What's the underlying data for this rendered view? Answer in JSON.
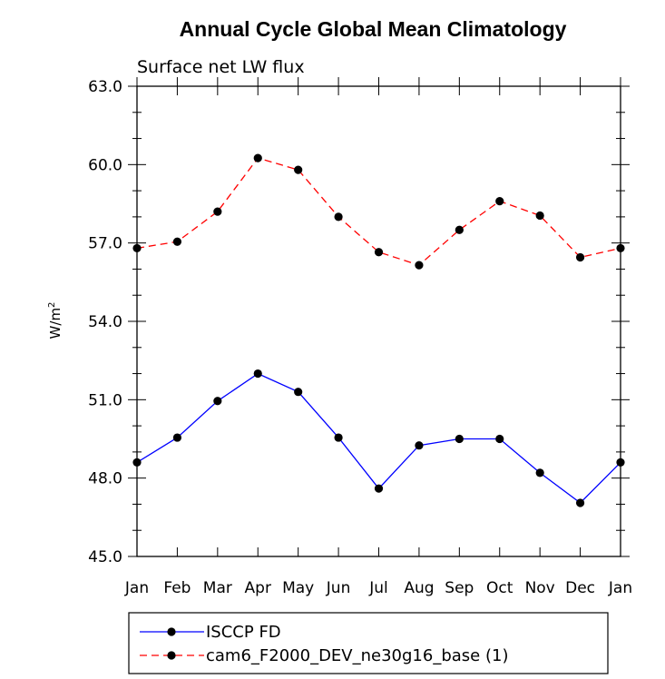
{
  "chart_data": {
    "type": "line",
    "title": "Annual Cycle Global Mean Climatology",
    "subtitle": "Surface net LW flux",
    "xlabel": "",
    "ylabel_base": "W/m",
    "ylabel_sup": "2",
    "categories": [
      "Jan",
      "Feb",
      "Mar",
      "Apr",
      "May",
      "Jun",
      "Jul",
      "Aug",
      "Sep",
      "Oct",
      "Nov",
      "Dec",
      "Jan"
    ],
    "ylim": [
      45.0,
      63.0
    ],
    "yticks": [
      "45.0",
      "48.0",
      "51.0",
      "54.0",
      "57.0",
      "60.0",
      "63.0"
    ],
    "grid": false,
    "legend_position": "bottom",
    "series": [
      {
        "name": "ISCCP FD",
        "color": "#0000ff",
        "dash": "solid",
        "values": [
          48.6,
          49.55,
          50.95,
          52.0,
          51.3,
          49.55,
          47.6,
          49.25,
          49.5,
          49.5,
          48.2,
          47.05,
          48.6
        ]
      },
      {
        "name": "cam6_F2000_DEV_ne30g16_base (1)",
        "color": "#ff0000",
        "dash": "dashed",
        "values": [
          56.8,
          57.05,
          58.2,
          60.25,
          59.8,
          58.0,
          56.65,
          56.15,
          57.5,
          58.6,
          58.05,
          56.45,
          56.8
        ]
      }
    ]
  }
}
